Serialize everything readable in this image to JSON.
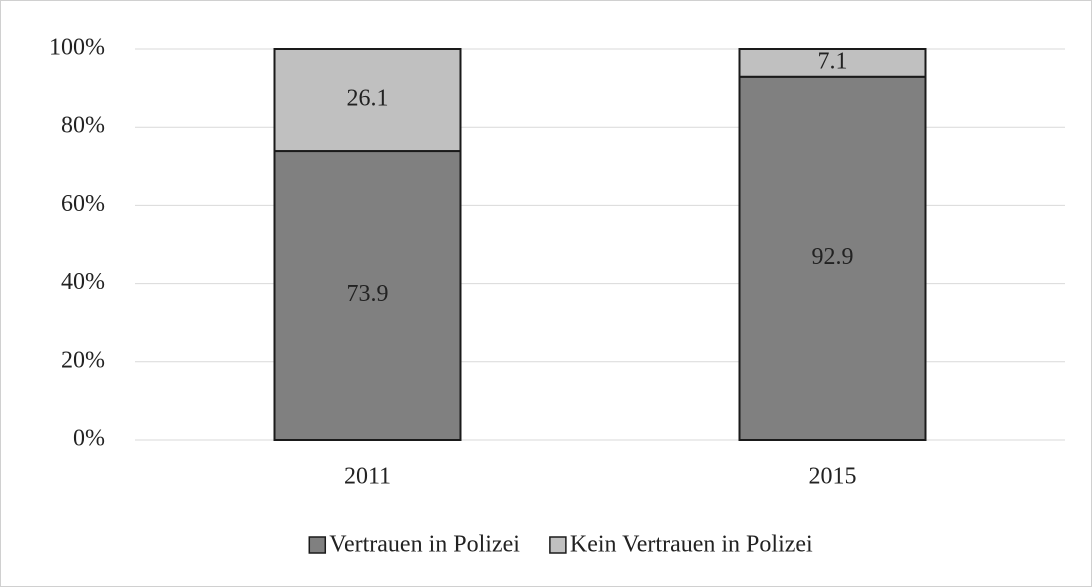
{
  "chart_data": {
    "type": "stacked_bar",
    "categories": [
      "2011",
      "2015"
    ],
    "series": [
      {
        "name": "Vertrauen in Polizei",
        "color": "#808080",
        "values": [
          73.9,
          92.9
        ]
      },
      {
        "name": "Kein Vertrauen in Polizei",
        "color": "#c0c0c0",
        "values": [
          26.1,
          7.1
        ]
      }
    ],
    "ylim": [
      0,
      100
    ],
    "yticks": [
      {
        "value": 0,
        "label": "0%"
      },
      {
        "value": 20,
        "label": "20%"
      },
      {
        "value": 40,
        "label": "40%"
      },
      {
        "value": 60,
        "label": "60%"
      },
      {
        "value": 80,
        "label": "80%"
      },
      {
        "value": 100,
        "label": "100%"
      }
    ],
    "grid": true,
    "legend": "bottom"
  }
}
